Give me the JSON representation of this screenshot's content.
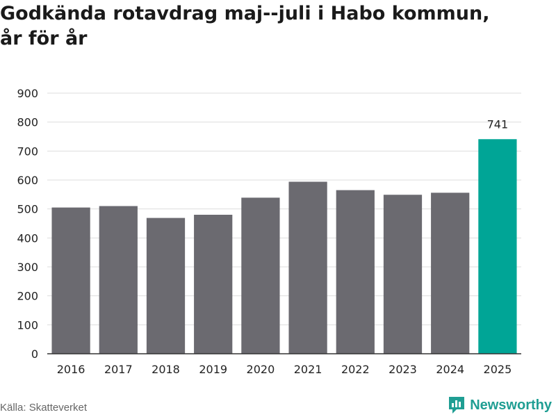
{
  "title_line1": "Godkända rotavdrag maj--juli i Habo kommun,",
  "title_line2": "år för år",
  "source": "Källa: Skatteverket",
  "brand": {
    "name": "Newsworthy",
    "icon": "newsworthy-logo-icon",
    "color": "#1f9e93"
  },
  "colors": {
    "bar": "#6b6a70",
    "highlight": "#00a596",
    "grid": "#dddddd",
    "axis": "#333333"
  },
  "chart_data": {
    "type": "bar",
    "title": "Godkända rotavdrag maj--juli i Habo kommun, år för år",
    "xlabel": "",
    "ylabel": "",
    "categories": [
      "2016",
      "2017",
      "2018",
      "2019",
      "2020",
      "2021",
      "2022",
      "2023",
      "2024",
      "2025"
    ],
    "values": [
      505,
      510,
      469,
      480,
      539,
      594,
      565,
      549,
      556,
      741
    ],
    "highlight_index": 9,
    "data_labels": {
      "9": "741"
    },
    "ylim": [
      0,
      900
    ],
    "yticks": [
      0,
      100,
      200,
      300,
      400,
      500,
      600,
      700,
      800,
      900
    ],
    "grid": true,
    "legend": "none"
  }
}
